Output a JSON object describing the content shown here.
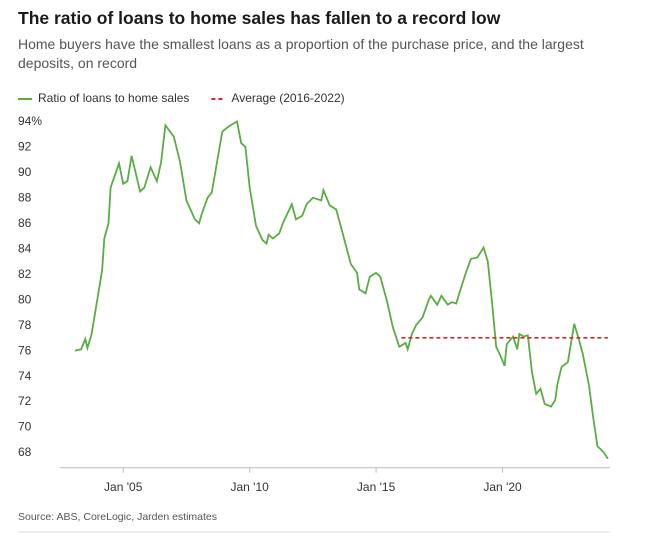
{
  "chart_data": {
    "type": "line",
    "title": "The ratio of loans to home sales has fallen to a record low",
    "subtitle": "Home buyers have the smallest loans as a proportion of the purchase price, and the largest deposits, on record",
    "source": "Source: ABS, CoreLogic, Jarden estimates",
    "x": [
      "2003-02",
      "2003-05",
      "2003-07",
      "2003-08",
      "2003-10",
      "2003-12",
      "2004-03",
      "2004-04",
      "2004-06",
      "2004-07",
      "2004-11",
      "2005-01",
      "2005-03",
      "2005-05",
      "2005-09",
      "2005-11",
      "2006-02",
      "2006-05",
      "2006-07",
      "2006-09",
      "2007-01",
      "2007-04",
      "2007-07",
      "2007-11",
      "2008-01",
      "2008-02",
      "2008-05",
      "2008-07",
      "2008-09",
      "2008-12",
      "2009-03",
      "2009-07",
      "2009-09",
      "2009-11",
      "2010-01",
      "2010-04",
      "2010-07",
      "2010-09",
      "2010-10",
      "2010-12",
      "2011-03",
      "2011-05",
      "2011-07",
      "2011-09",
      "2011-11",
      "2012-02",
      "2012-04",
      "2012-07",
      "2012-11",
      "2012-12",
      "2013-03",
      "2013-06",
      "2013-09",
      "2014-01",
      "2014-04",
      "2014-05",
      "2014-08",
      "2014-10",
      "2015-01",
      "2015-03",
      "2015-06",
      "2015-09",
      "2015-12",
      "2016-03",
      "2016-04",
      "2016-06",
      "2016-08",
      "2016-11",
      "2017-02",
      "2017-03",
      "2017-06",
      "2017-08",
      "2017-11",
      "2018-01",
      "2018-03",
      "2018-06",
      "2018-08",
      "2018-10",
      "2019-01",
      "2019-04",
      "2019-06",
      "2019-08",
      "2019-10",
      "2019-12",
      "2020-02",
      "2020-03",
      "2020-06",
      "2020-08",
      "2020-09",
      "2020-11",
      "2021-01",
      "2021-03",
      "2021-05",
      "2021-07",
      "2021-09",
      "2021-12",
      "2022-02",
      "2022-03",
      "2022-05",
      "2022-08",
      "2022-10",
      "2022-11",
      "2023-01",
      "2023-03",
      "2023-06",
      "2023-08",
      "2023-10",
      "2024-01",
      "2024-03"
    ],
    "series": [
      {
        "name": "Ratio of loans to home sales",
        "color": "#5aac44",
        "dashed": false,
        "values": [
          76.2,
          76.3,
          77.1,
          76.4,
          77.5,
          79.5,
          82.5,
          85,
          86.2,
          89,
          90.9,
          89.3,
          89.5,
          91.5,
          88.7,
          89,
          90.6,
          89.5,
          91,
          93.9,
          93,
          91,
          88,
          86.5,
          86.2,
          86.8,
          88.2,
          88.6,
          90.5,
          93.4,
          93.8,
          94.2,
          92.5,
          92.2,
          89,
          86,
          84.9,
          84.6,
          85.3,
          85,
          85.4,
          86.3,
          87,
          87.7,
          86.5,
          86.8,
          87.7,
          88.2,
          88,
          88.8,
          87.6,
          87.3,
          85.5,
          83,
          82.3,
          81,
          80.7,
          82,
          82.3,
          82,
          80.2,
          78,
          76.5,
          76.8,
          76.3,
          77.5,
          78.2,
          78.8,
          80.2,
          80.5,
          79.8,
          80.5,
          79.8,
          80,
          79.9,
          81.5,
          82.5,
          83.4,
          83.5,
          84.3,
          83.2,
          80,
          76.5,
          75.8,
          75,
          76.7,
          77.3,
          76.3,
          77.5,
          77.3,
          77.4,
          74.5,
          72.8,
          73.2,
          72,
          71.8,
          72.3,
          73.5,
          74.9,
          75.3,
          77.3,
          78.3,
          77.2,
          76,
          73.5,
          71,
          68.7,
          68.2,
          67.7
        ]
      },
      {
        "name": "Average (2016-2022)",
        "color": "#e0202a",
        "dashed": true,
        "x": [
          "2016-01",
          "2024-03"
        ],
        "values": [
          77.2,
          77.2
        ]
      }
    ],
    "xlim": [
      "2002-07",
      "2024-04"
    ],
    "xticks": [
      {
        "value": "2005-01",
        "label": "Jan '05"
      },
      {
        "value": "2010-01",
        "label": "Jan '10"
      },
      {
        "value": "2015-01",
        "label": "Jan '15"
      },
      {
        "value": "2020-01",
        "label": "Jan '20"
      }
    ],
    "ylim": [
      67,
      94.5
    ],
    "yticks": [
      68,
      70,
      72,
      74,
      76,
      78,
      80,
      82,
      84,
      86,
      88,
      90,
      92,
      {
        "value": 94,
        "label": "94%"
      }
    ],
    "grid": false,
    "legend": "top-left"
  }
}
